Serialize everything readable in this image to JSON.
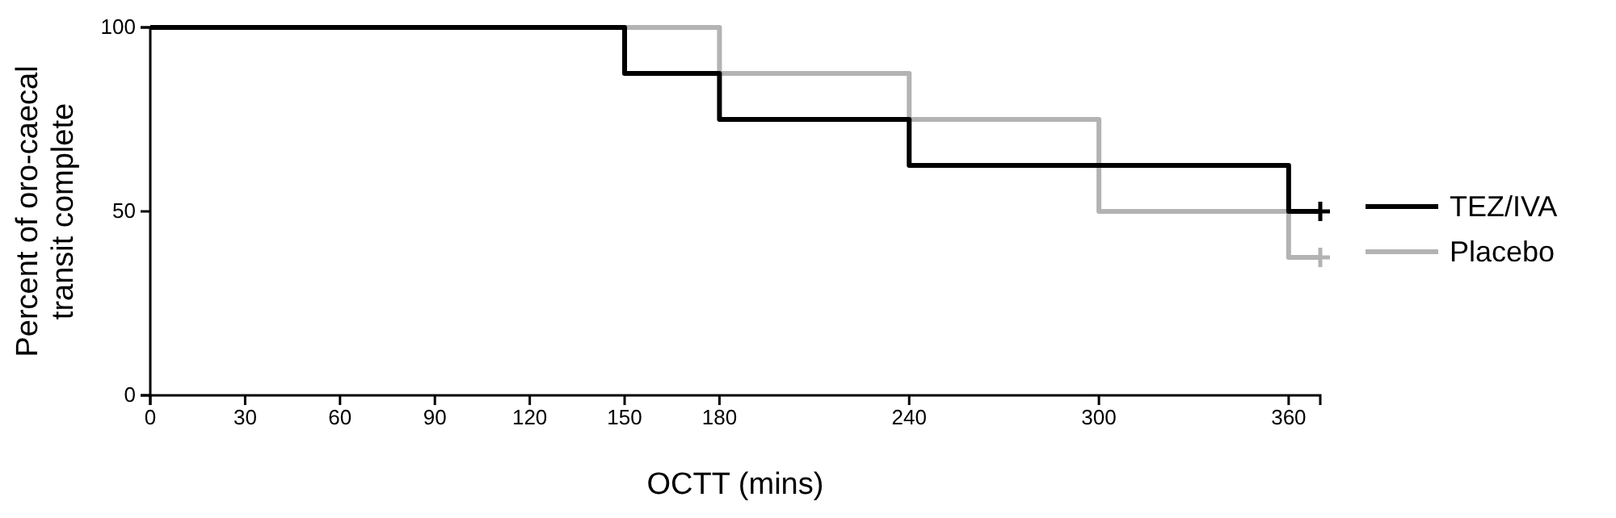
{
  "chart_data": {
    "type": "step",
    "xlabel": "OCTT (mins)",
    "ylabel": "Percent of oro-caecal transit complete",
    "xlim": [
      0,
      370
    ],
    "xticks": [
      0,
      30,
      60,
      90,
      120,
      150,
      180,
      240,
      300,
      360
    ],
    "ylim": [
      0,
      100
    ],
    "yticks": [
      0,
      50,
      100
    ],
    "grid": false,
    "legend": "right",
    "series": [
      {
        "name": "TEZ/IVA",
        "color": "#000000",
        "x": [
          0,
          150,
          180,
          240,
          360,
          370
        ],
        "values": [
          100,
          87.5,
          75,
          62.5,
          50,
          50
        ]
      },
      {
        "name": "Placebo",
        "color": "#b3b3b3",
        "x": [
          0,
          180,
          240,
          300,
          360,
          370
        ],
        "values": [
          100,
          87.5,
          75,
          50,
          37.5,
          37.5
        ]
      },
      {
        "type": "scatter",
        "marker": "cross",
        "color": "#000000",
        "x": [
          370
        ],
        "values": [
          50
        ]
      },
      {
        "type": "scatter",
        "marker": "cross",
        "color": "#b3b3b3",
        "x": [
          370
        ],
        "values": [
          37.5
        ]
      }
    ]
  }
}
